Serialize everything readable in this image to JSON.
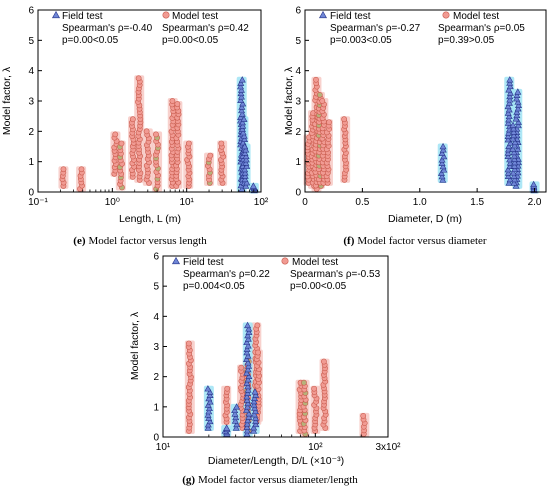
{
  "colors": {
    "field_fill": "#6f86d6",
    "field_stroke": "#26348a",
    "field_band": "#9fe3f5",
    "model_fill": "#f19b93",
    "model_stroke": "#c95c4e",
    "model_band": "#f7c9c4",
    "model_olive": "#b7b27a"
  },
  "chart_data": [
    {
      "panel": "e",
      "type": "scatter",
      "caption_label": "(e)",
      "caption": "Model factor versus length",
      "xlabel": "Length, L (m)",
      "ylabel": "Model factor, λ",
      "xscale": "log",
      "xlim": [
        0.1,
        100
      ],
      "ylim": [
        0,
        6
      ],
      "xticks": [
        0.1,
        1,
        10,
        100
      ],
      "xtick_labels": [
        "10⁻¹",
        "10⁰",
        "10¹",
        "10²"
      ],
      "yticks": [
        0,
        1,
        2,
        3,
        4,
        5,
        6
      ],
      "legend_position": "top",
      "legend": {
        "field": "Field test",
        "model": "Model test"
      },
      "stats": {
        "field": {
          "spearman": "Spearman's ρ=-0.40",
          "p": "p=0.00<0.05"
        },
        "model": {
          "spearman": "Spearman's ρ=0.42",
          "p": "p=0.00<0.05"
        }
      },
      "series": [
        {
          "name": "Model test",
          "columns": [
            {
              "x": 0.22,
              "min": 0.2,
              "max": 0.75
            },
            {
              "x": 0.38,
              "min": 0.1,
              "max": 0.75
            },
            {
              "x": 1.1,
              "min": 0.6,
              "max": 1.9
            },
            {
              "x": 1.3,
              "min": 0.15,
              "max": 1.6
            },
            {
              "x": 1.9,
              "min": 0.5,
              "max": 2.4
            },
            {
              "x": 2.3,
              "min": 0.4,
              "max": 3.75
            },
            {
              "x": 3.0,
              "min": 0.3,
              "max": 2.0
            },
            {
              "x": 4.0,
              "min": 0.1,
              "max": 1.9
            },
            {
              "x": 6.5,
              "min": 0.2,
              "max": 3.0
            },
            {
              "x": 7.5,
              "min": 0.2,
              "max": 2.9
            },
            {
              "x": 10.5,
              "min": 0.2,
              "max": 1.6
            },
            {
              "x": 20,
              "min": 0.3,
              "max": 1.2
            },
            {
              "x": 30,
              "min": 0.3,
              "max": 1.6
            }
          ]
        },
        {
          "name": "Field test",
          "columns": [
            {
              "x": 55,
              "min": 0.1,
              "max": 3.7
            },
            {
              "x": 58,
              "min": 0.3,
              "max": 2.4
            },
            {
              "x": 62,
              "min": 0.2,
              "max": 1.5
            },
            {
              "x": 80,
              "min": 0.05,
              "max": 0.2
            }
          ]
        }
      ]
    },
    {
      "panel": "f",
      "type": "scatter",
      "caption_label": "(f)",
      "caption": "Model factor versus diameter",
      "xlabel": "Diameter, D (m)",
      "ylabel": "Model factor, λ",
      "xscale": "linear",
      "xlim": [
        0,
        2.1
      ],
      "ylim": [
        0,
        6
      ],
      "xticks": [
        0,
        0.5,
        1,
        1.5,
        2
      ],
      "xtick_labels": [
        "0",
        "0.5",
        "1.0",
        "1.5",
        "2.0"
      ],
      "yticks": [
        0,
        1,
        2,
        3,
        4,
        5,
        6
      ],
      "legend_position": "top",
      "legend": {
        "field": "Field test",
        "model": "Model test"
      },
      "stats": {
        "field": {
          "spearman": "Spearman's ρ=-0.27",
          "p": "p=0.003<0.05"
        },
        "model": {
          "spearman": "Spearman's ρ=0.05",
          "p": "p=0.39>0.05"
        }
      },
      "series": [
        {
          "name": "Model test",
          "columns": [
            {
              "x": 0.03,
              "min": 0.3,
              "max": 1.8
            },
            {
              "x": 0.07,
              "min": 0.2,
              "max": 2.6
            },
            {
              "x": 0.1,
              "min": 0.1,
              "max": 3.7
            },
            {
              "x": 0.13,
              "min": 0.2,
              "max": 3.2
            },
            {
              "x": 0.16,
              "min": 0.3,
              "max": 3.0
            },
            {
              "x": 0.2,
              "min": 0.3,
              "max": 2.3
            },
            {
              "x": 0.35,
              "min": 0.4,
              "max": 2.4
            }
          ]
        },
        {
          "name": "Field test",
          "columns": [
            {
              "x": 1.2,
              "min": 0.4,
              "max": 1.5
            },
            {
              "x": 1.78,
              "min": 0.3,
              "max": 3.7
            },
            {
              "x": 1.85,
              "min": 0.2,
              "max": 3.3
            },
            {
              "x": 1.82,
              "min": 0.3,
              "max": 2.2
            },
            {
              "x": 2.0,
              "min": 0.05,
              "max": 0.25
            }
          ]
        }
      ]
    },
    {
      "panel": "g",
      "type": "scatter",
      "caption_label": "(g)",
      "caption": "Model factor versus diameter/length",
      "xlabel": "Diameter/Length,  D/L (×10⁻³)",
      "ylabel": "Model factor, λ",
      "xscale": "log",
      "xlim": [
        10,
        300
      ],
      "ylim": [
        0,
        6
      ],
      "xticks": [
        10,
        100,
        300
      ],
      "xtick_labels": [
        "10¹",
        "10²",
        "3x10²"
      ],
      "yticks": [
        0,
        1,
        2,
        3,
        4,
        5,
        6
      ],
      "legend_position": "top",
      "legend": {
        "field": "Field test",
        "model": "Model test"
      },
      "stats": {
        "field": {
          "spearman": "Spearman's ρ=0.22",
          "p": "p=0.004<0.05"
        },
        "model": {
          "spearman": "Spearman's ρ=-0.53",
          "p": "p=0.00<0.05"
        }
      },
      "series": [
        {
          "name": "Model test",
          "columns": [
            {
              "x": 15,
              "min": 0.2,
              "max": 3.1
            },
            {
              "x": 26,
              "min": 0.5,
              "max": 1.6
            },
            {
              "x": 33,
              "min": 0.3,
              "max": 2.3
            },
            {
              "x": 36,
              "min": 0.2,
              "max": 2.5
            },
            {
              "x": 41,
              "min": 0.5,
              "max": 3.7
            },
            {
              "x": 42,
              "min": 0.6,
              "max": 2.8
            },
            {
              "x": 80,
              "min": 0.2,
              "max": 1.8
            },
            {
              "x": 85,
              "min": 0.1,
              "max": 1.8
            },
            {
              "x": 100,
              "min": 0.2,
              "max": 1.6
            },
            {
              "x": 115,
              "min": 0.3,
              "max": 2.5
            },
            {
              "x": 210,
              "min": 0.1,
              "max": 0.7
            }
          ]
        },
        {
          "name": "Field test",
          "columns": [
            {
              "x": 20,
              "min": 0.3,
              "max": 1.6
            },
            {
              "x": 26,
              "min": 0.1,
              "max": 0.3
            },
            {
              "x": 30,
              "min": 0.3,
              "max": 1.0
            },
            {
              "x": 36,
              "min": 0.1,
              "max": 3.7
            },
            {
              "x": 40,
              "min": 0.2,
              "max": 1.5
            }
          ]
        }
      ]
    }
  ]
}
